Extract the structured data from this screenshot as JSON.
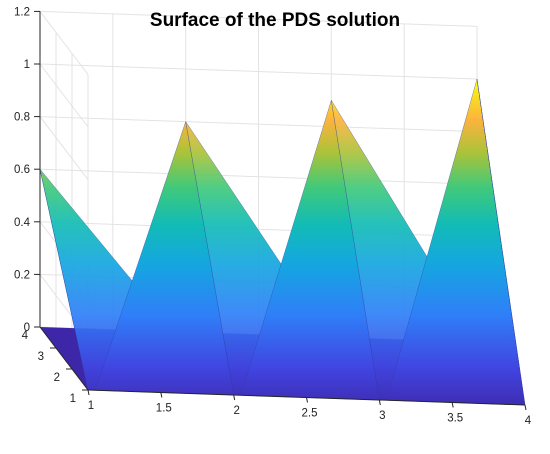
{
  "chart_data": {
    "type": "surface",
    "title": "Surface of the PDS solution",
    "xlabel": "",
    "ylabel": "",
    "zlabel": "",
    "x_ticks": [
      "1",
      "1.5",
      "2",
      "2.5",
      "3",
      "3.5",
      "4"
    ],
    "y_ticks": [
      "1",
      "2",
      "3",
      "4"
    ],
    "z_ticks": [
      "0",
      "0.2",
      "0.4",
      "0.6",
      "0.8",
      "1",
      "1.2"
    ],
    "xlim": [
      1,
      4
    ],
    "ylim": [
      1,
      4
    ],
    "zlim": [
      0,
      1.2
    ],
    "grid": true,
    "colormap": "parula",
    "colors": {
      "low": "#3e26a8",
      "mid": "#12bcb5",
      "high": "#f9fb15"
    },
    "x": [
      1,
      2,
      3,
      4
    ],
    "y": [
      1,
      2,
      3,
      4
    ],
    "z": [
      [
        0,
        0,
        0,
        0
      ],
      [
        0,
        0,
        0,
        0
      ],
      [
        0,
        0,
        0,
        0
      ],
      [
        0.6,
        0.8,
        0.9,
        1.0
      ]
    ]
  }
}
